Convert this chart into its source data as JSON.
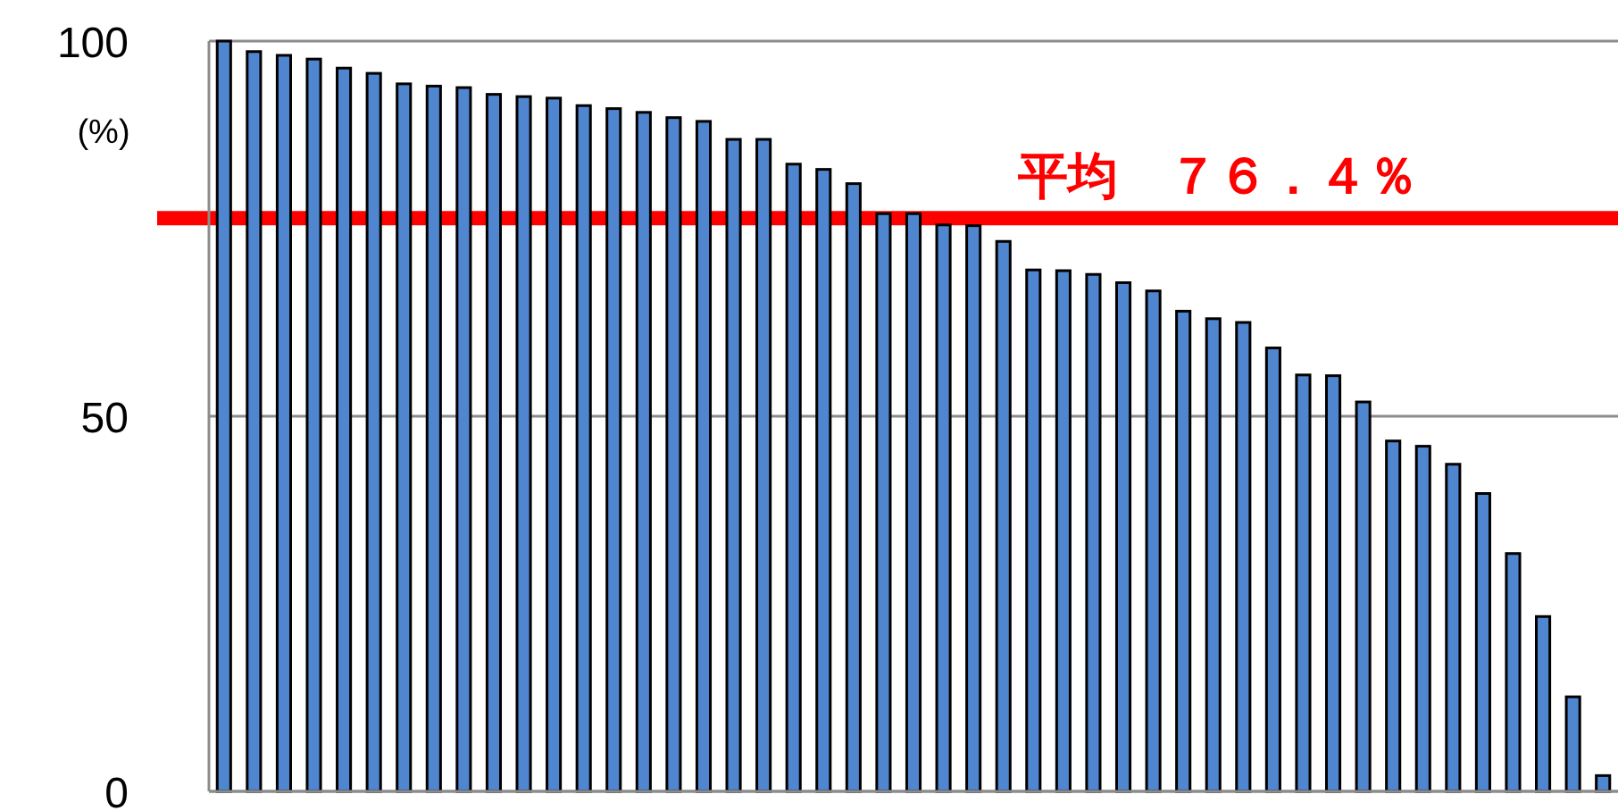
{
  "chart_data": {
    "type": "bar",
    "ylabel": "(%)",
    "categories": [
      null,
      null,
      null,
      null,
      null,
      null,
      null,
      null,
      null,
      null,
      null,
      null,
      null,
      null,
      null,
      null,
      null,
      null,
      null,
      null,
      null,
      null,
      null,
      null,
      null,
      null,
      null,
      null,
      null,
      null,
      null,
      null,
      null,
      null,
      null,
      null,
      null,
      null,
      null,
      null,
      null,
      null,
      null,
      null,
      null,
      null,
      null
    ],
    "series": [
      {
        "color": "#4f86cf",
        "values": [
          100,
          98.6,
          98.1,
          97.6,
          96.4,
          95.7,
          94.3,
          94.0,
          93.8,
          92.9,
          92.6,
          92.4,
          91.4,
          91.0,
          90.5,
          89.8,
          89.3,
          86.9,
          86.9,
          83.6,
          82.9,
          81.0,
          77,
          77,
          75.5,
          75.4,
          73.3,
          69.5,
          69.4,
          68.9,
          67.8,
          66.7,
          64.0,
          63.0,
          62.5,
          59.1,
          55.5,
          55.4,
          51.9,
          46.7,
          46.0,
          43.6,
          39.7,
          31.7,
          23.3,
          12.6,
          2.1
        ]
      }
    ],
    "ylim": [
      0,
      100
    ],
    "yticks": [
      0,
      50,
      100
    ],
    "grid": "y",
    "tick_labels": "y",
    "ref_lines": [
      {
        "axis": "y",
        "value": 76.4,
        "label": "平均　７６．４％",
        "color": "#ff0000"
      }
    ]
  }
}
